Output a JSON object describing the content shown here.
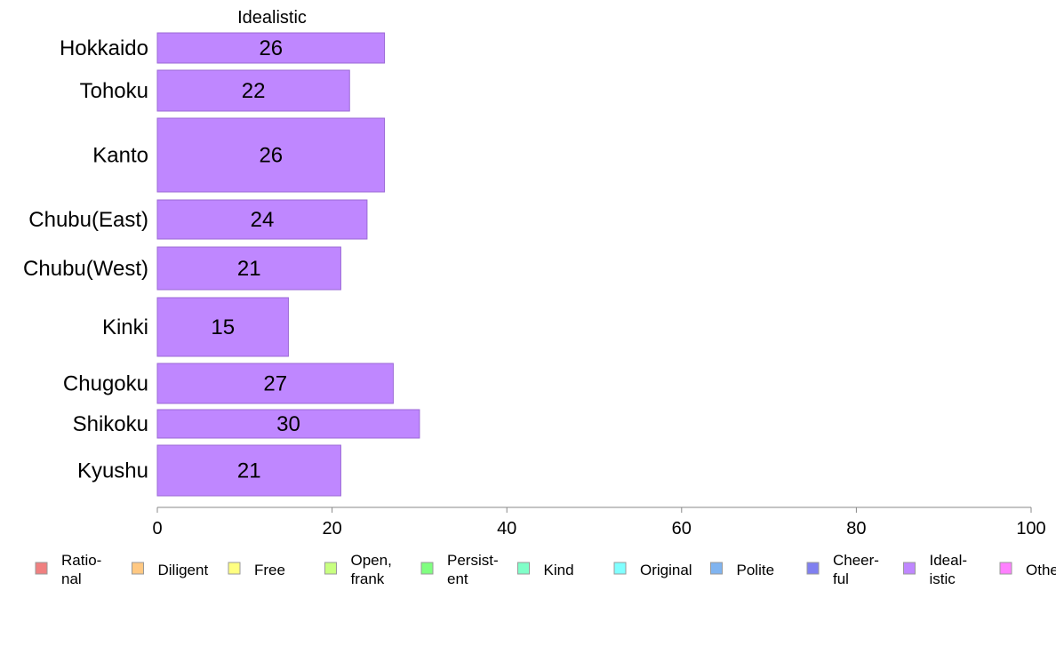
{
  "chart_data": {
    "type": "bar",
    "orientation": "horizontal",
    "title": "Idealistic",
    "categories": [
      "Hokkaido",
      "Tohoku",
      "Kanto",
      "Chubu(East)",
      "Chubu(West)",
      "Kinki",
      "Chugoku",
      "Shikoku",
      "Kyushu"
    ],
    "values": [
      26,
      22,
      26,
      24,
      21,
      15,
      27,
      30,
      21
    ],
    "bar_color": "#bf87ff",
    "bar_edge_color": "#9b6ad6",
    "xlim": [
      0,
      100
    ],
    "xticks": [
      0,
      20,
      40,
      60,
      80,
      100
    ],
    "grid": false,
    "legend_position": "bottom",
    "legend": [
      {
        "label": [
          "Ratio-",
          "nal"
        ],
        "color": "#f08080"
      },
      {
        "label": [
          "Diligent"
        ],
        "color": "#ffc882"
      },
      {
        "label": [
          "Free"
        ],
        "color": "#ffff80"
      },
      {
        "label": [
          "Open,",
          "frank"
        ],
        "color": "#c8ff80"
      },
      {
        "label": [
          "Persist-",
          "ent"
        ],
        "color": "#80ff80"
      },
      {
        "label": [
          "Kind"
        ],
        "color": "#80ffc8"
      },
      {
        "label": [
          "Original"
        ],
        "color": "#80ffff"
      },
      {
        "label": [
          "Polite"
        ],
        "color": "#80b4f0"
      },
      {
        "label": [
          "Cheer-",
          "ful"
        ],
        "color": "#8080f0"
      },
      {
        "label": [
          "Ideal-",
          "istic"
        ],
        "color": "#bf87ff"
      },
      {
        "label": [
          "Other"
        ],
        "color": "#ff80ff"
      }
    ]
  }
}
